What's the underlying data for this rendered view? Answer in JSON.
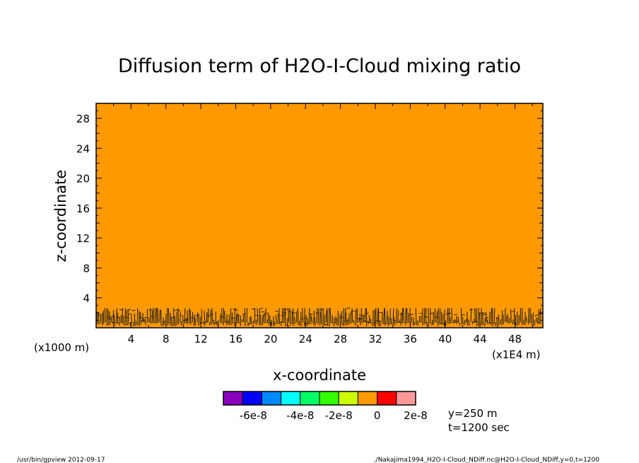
{
  "chart_data": {
    "type": "heatmap",
    "title": "Diffusion term of H2O-I-Cloud mixing ratio",
    "xlabel": "x-coordinate",
    "ylabel": "z-coordinate",
    "x_unit_left": "(x1000 m)",
    "x_unit_right": "(x1E4 m)",
    "xlim": [
      0,
      51.2
    ],
    "ylim": [
      0,
      30
    ],
    "xticks": [
      4,
      8,
      12,
      16,
      20,
      24,
      28,
      32,
      36,
      40,
      44,
      48
    ],
    "yticks": [
      4,
      8,
      12,
      16,
      20,
      24,
      28
    ],
    "xtick_labels": [
      "4",
      "8",
      "12",
      "16",
      "20",
      "24",
      "28",
      "32",
      "36",
      "40",
      "44",
      "48"
    ],
    "ytick_labels": [
      "4",
      "8",
      "12",
      "16",
      "20",
      "24",
      "28"
    ],
    "field_value": 0,
    "field_color": "#ff9900",
    "contour_band_top": 3,
    "colorbar": {
      "colors": [
        "#8800bb",
        "#0000ff",
        "#0088ff",
        "#00ffff",
        "#00ff66",
        "#33ff00",
        "#ccff00",
        "#ff9900",
        "#ff0000",
        "#ff9999"
      ],
      "labels": [
        "-6e-8",
        "-4e-8",
        "-2e-8",
        "0",
        "2e-8"
      ]
    },
    "annotations": {
      "y_info": "y=250 m",
      "t_info": "t=1200 sec"
    }
  },
  "footer": {
    "left": "/usr/bin/gpview   2012-09-17",
    "right": "./Nakajima1994_H2O-I-Cloud_NDiff.nc@H2O-I-Cloud_NDiff,y=0,t=1200"
  }
}
